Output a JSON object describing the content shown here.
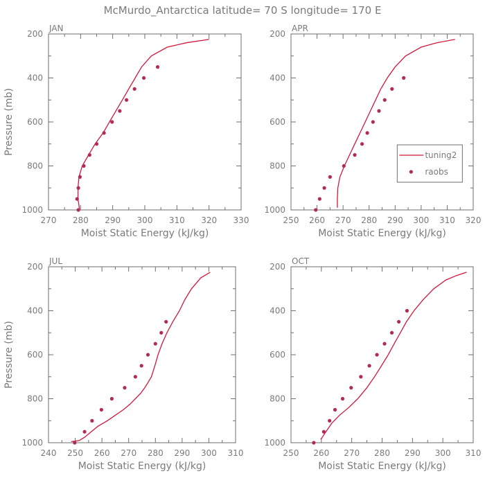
{
  "figure": {
    "title": "McMurdo_Antarctica   latitude= 70 S longitude= 170 E"
  },
  "chart_data": [
    {
      "type": "line",
      "panel_label": "JAN",
      "xlabel": "Moist Static Energy (kJ/kg)",
      "ylabel": "Pressure (mb)",
      "xlim": [
        270,
        330
      ],
      "ylim": [
        1000,
        200
      ],
      "xticks": [
        270,
        280,
        290,
        300,
        310,
        320,
        330
      ],
      "yticks": [
        200,
        400,
        600,
        800,
        1000
      ],
      "grid": false,
      "series": [
        {
          "name": "tuning2",
          "style": "line",
          "color": "#d0183a",
          "points": [
            [
              279.7,
              1000
            ],
            [
              279.2,
              950
            ],
            [
              279.2,
              900
            ],
            [
              279.5,
              850
            ],
            [
              280.5,
              800
            ],
            [
              282.5,
              750
            ],
            [
              284.5,
              700
            ],
            [
              287,
              650
            ],
            [
              289,
              600
            ],
            [
              291,
              550
            ],
            [
              293,
              500
            ],
            [
              295,
              450
            ],
            [
              297,
              400
            ],
            [
              299,
              350
            ],
            [
              302,
              300
            ],
            [
              307,
              260
            ],
            [
              313,
              240
            ],
            [
              320,
              225
            ]
          ]
        },
        {
          "name": "raobs",
          "style": "dots",
          "color": "#b02a5a",
          "points": [
            [
              279.3,
              1000
            ],
            [
              278.9,
              950
            ],
            [
              279.3,
              900
            ],
            [
              279.8,
              850
            ],
            [
              281,
              800
            ],
            [
              282.8,
              750
            ],
            [
              285,
              700
            ],
            [
              287.3,
              650
            ],
            [
              289.8,
              600
            ],
            [
              292.2,
              550
            ],
            [
              294.3,
              500
            ],
            [
              296.8,
              450
            ],
            [
              299.7,
              400
            ],
            [
              304,
              350
            ]
          ]
        }
      ]
    },
    {
      "type": "line",
      "panel_label": "APR",
      "xlabel": "Moist Static Energy (kJ/kg)",
      "ylabel": "",
      "xlim": [
        250,
        320
      ],
      "ylim": [
        1000,
        200
      ],
      "xticks": [
        250,
        260,
        270,
        280,
        290,
        300,
        310,
        320
      ],
      "yticks": [
        200,
        400,
        600,
        800,
        1000
      ],
      "grid": false,
      "legend": {
        "position": "right"
      },
      "series": [
        {
          "name": "tuning2",
          "style": "line",
          "color": "#d0183a",
          "points": [
            [
              267.8,
              990
            ],
            [
              267.8,
              950
            ],
            [
              268,
              900
            ],
            [
              268.8,
              850
            ],
            [
              270.5,
              800
            ],
            [
              272.5,
              750
            ],
            [
              274.5,
              700
            ],
            [
              276.5,
              650
            ],
            [
              278.5,
              600
            ],
            [
              280.5,
              550
            ],
            [
              282.5,
              500
            ],
            [
              284.5,
              450
            ],
            [
              287,
              400
            ],
            [
              290,
              350
            ],
            [
              294,
              300
            ],
            [
              300,
              260
            ],
            [
              306,
              240
            ],
            [
              313,
              225
            ]
          ]
        },
        {
          "name": "raobs",
          "style": "dots",
          "color": "#b02a5a",
          "points": [
            [
              259.5,
              1000
            ],
            [
              261,
              950
            ],
            [
              262.8,
              900
            ],
            [
              265,
              850
            ],
            [
              270.3,
              800
            ],
            [
              274.5,
              750
            ],
            [
              277.3,
              700
            ],
            [
              279.3,
              650
            ],
            [
              281.5,
              600
            ],
            [
              283.8,
              550
            ],
            [
              286,
              500
            ],
            [
              288.8,
              450
            ],
            [
              293.3,
              400
            ]
          ]
        }
      ]
    },
    {
      "type": "line",
      "panel_label": "JUL",
      "xlabel": "Moist Static Energy (kJ/kg)",
      "ylabel": "Pressure (mb)",
      "xlim": [
        240,
        310
      ],
      "ylim": [
        1000,
        200
      ],
      "xticks": [
        240,
        250,
        260,
        270,
        280,
        290,
        300,
        310
      ],
      "yticks": [
        200,
        400,
        600,
        800,
        1000
      ],
      "grid": false,
      "series": [
        {
          "name": "tuning2",
          "style": "line",
          "color": "#d0183a",
          "points": [
            [
              248.5,
              995
            ],
            [
              251.5,
              990
            ],
            [
              253.5,
              975
            ],
            [
              256,
              950
            ],
            [
              258.5,
              925
            ],
            [
              262,
              900
            ],
            [
              265,
              875
            ],
            [
              268,
              850
            ],
            [
              270.5,
              825
            ],
            [
              272.5,
              800
            ],
            [
              274.5,
              775
            ],
            [
              276,
              750
            ],
            [
              277.3,
              725
            ],
            [
              278.5,
              700
            ],
            [
              279.8,
              650
            ],
            [
              281,
              600
            ],
            [
              282.5,
              550
            ],
            [
              284.3,
              500
            ],
            [
              286.5,
              450
            ],
            [
              289,
              400
            ],
            [
              291,
              350
            ],
            [
              293.5,
              300
            ],
            [
              297,
              250
            ],
            [
              300.5,
              225
            ]
          ]
        },
        {
          "name": "raobs",
          "style": "dots",
          "color": "#b02a5a",
          "points": [
            [
              249.8,
              1000
            ],
            [
              253.5,
              950
            ],
            [
              256.3,
              900
            ],
            [
              259.8,
              850
            ],
            [
              263.7,
              800
            ],
            [
              268.5,
              750
            ],
            [
              272.5,
              700
            ],
            [
              274.8,
              650
            ],
            [
              277.2,
              600
            ],
            [
              280,
              550
            ],
            [
              282.2,
              500
            ],
            [
              284,
              450
            ]
          ]
        }
      ]
    },
    {
      "type": "line",
      "panel_label": "OCT",
      "xlabel": "Moist Static Energy (kJ/kg)",
      "ylabel": "",
      "xlim": [
        250,
        310
      ],
      "ylim": [
        1000,
        200
      ],
      "xticks": [
        250,
        260,
        270,
        280,
        290,
        300,
        310
      ],
      "yticks": [
        200,
        400,
        600,
        800,
        1000
      ],
      "grid": false,
      "series": [
        {
          "name": "tuning2",
          "style": "line",
          "color": "#d0183a",
          "points": [
            [
              259.8,
              985
            ],
            [
              261.5,
              950
            ],
            [
              263.5,
              910
            ],
            [
              266,
              875
            ],
            [
              269,
              840
            ],
            [
              272,
              800
            ],
            [
              275,
              750
            ],
            [
              277.5,
              700
            ],
            [
              279.8,
              650
            ],
            [
              282,
              600
            ],
            [
              284,
              550
            ],
            [
              286,
              500
            ],
            [
              288,
              450
            ],
            [
              290.5,
              400
            ],
            [
              293.5,
              350
            ],
            [
              297,
              300
            ],
            [
              301,
              260
            ],
            [
              304.5,
              240
            ],
            [
              307.8,
              225
            ]
          ]
        },
        {
          "name": "raobs",
          "style": "dots",
          "color": "#b02a5a",
          "points": [
            [
              257.5,
              1000
            ],
            [
              260.8,
              950
            ],
            [
              262.7,
              900
            ],
            [
              264.5,
              850
            ],
            [
              267,
              800
            ],
            [
              269.8,
              750
            ],
            [
              273,
              700
            ],
            [
              275.8,
              650
            ],
            [
              278.3,
              600
            ],
            [
              280.8,
              550
            ],
            [
              283.2,
              500
            ],
            [
              285.5,
              450
            ],
            [
              288.2,
              400
            ]
          ]
        }
      ]
    }
  ]
}
